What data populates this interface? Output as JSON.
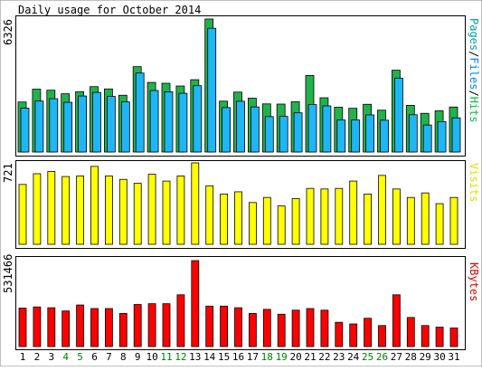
{
  "chart_data": {
    "type": "bar",
    "title": "Daily usage for October 2014",
    "colors": {
      "pages": "#00a0a0",
      "files": "#0080ff",
      "hits": "#00c040",
      "hits_bar": "#22b24c",
      "files_bar": "#1fb6f5",
      "pages_bar": "#0a8fa8",
      "visits_bar": "#ffff00",
      "kbytes_bar": "#ff0000",
      "visits_label": "#e0e000",
      "kbytes_label": "#e00000",
      "weekend_label": "#008000"
    },
    "categories": [
      "1",
      "2",
      "3",
      "4",
      "5",
      "6",
      "7",
      "8",
      "9",
      "10",
      "11",
      "12",
      "13",
      "14",
      "15",
      "16",
      "17",
      "18",
      "19",
      "20",
      "21",
      "22",
      "23",
      "24",
      "25",
      "26",
      "27",
      "28",
      "29",
      "30",
      "31"
    ],
    "weekend_days": [
      "4",
      "5",
      "11",
      "12",
      "18",
      "19",
      "25",
      "26"
    ],
    "panels": {
      "hits": {
        "max_label": "6326",
        "ylim": [
          0,
          6326
        ],
        "legend": [
          "Pages",
          "Files",
          "Hits"
        ],
        "series": [
          {
            "name": "Hits",
            "values": [
              2380,
              2990,
              2940,
              2770,
              2870,
              3110,
              3000,
              2700,
              4060,
              3310,
              3270,
              3140,
              3440,
              6326,
              2420,
              2850,
              2560,
              2290,
              2280,
              2390,
              3640,
              2580,
              2130,
              2080,
              2270,
              1990,
              3890,
              2220,
              1840,
              1960,
              2140
            ]
          },
          {
            "name": "Files",
            "values": [
              2300,
              2640,
              2750,
              2580,
              2880,
              3050,
              2860,
              2600,
              3970,
              3140,
              3080,
              3010,
              3370,
              6100,
              2330,
              2630,
              2360,
              1900,
              1910,
              2080,
              2470,
              2410,
              1740,
              1740,
              1980,
              1730,
              3730,
              1990,
              1500,
              1660,
              1840
            ]
          },
          {
            "name": "Pages",
            "values": [
              0,
              0,
              0,
              0,
              0,
              0,
              0,
              0,
              0,
              0,
              0,
              0,
              0,
              0,
              0,
              0,
              0,
              0,
              0,
              0,
              0,
              0,
              0,
              0,
              0,
              0,
              0,
              0,
              0,
              0,
              0
            ]
          }
        ]
      },
      "visits": {
        "max_label": "721",
        "ylim": [
          0,
          721
        ],
        "legend": [
          "Visits"
        ],
        "series": [
          {
            "name": "Visits",
            "values": [
              530,
              625,
              645,
              600,
              605,
              690,
              605,
              575,
              540,
              620,
              560,
              605,
              721,
              518,
              445,
              465,
              370,
              415,
              340,
              405,
              495,
              490,
              495,
              560,
              445,
              610,
              490,
              415,
              455,
              360,
              415
            ]
          }
        ]
      },
      "kbytes": {
        "max_label": "531466",
        "ylim": [
          0,
          531466
        ],
        "legend": [
          "KBytes"
        ],
        "series": [
          {
            "name": "KBytes",
            "values": [
              238000,
              245000,
              240000,
              220000,
              257000,
              235000,
              235000,
              205000,
              260000,
              265000,
              265000,
              320000,
              531466,
              250000,
              250000,
              240000,
              205000,
              230000,
              200000,
              225000,
              235000,
              225000,
              150000,
              140000,
              175000,
              130000,
              320000,
              180000,
              130000,
              120000,
              115000
            ]
          }
        ]
      }
    }
  }
}
